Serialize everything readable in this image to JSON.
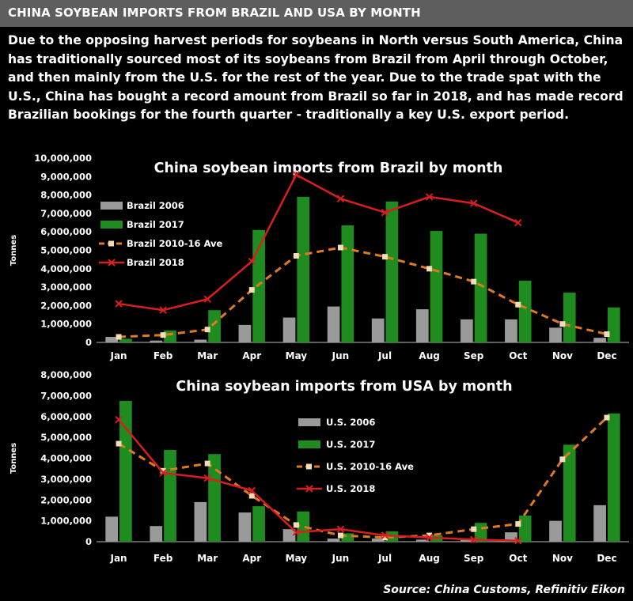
{
  "header": {
    "title": "CHINA SOYBEAN IMPORTS FROM BRAZIL AND USA BY MONTH"
  },
  "description": "Due to the opposing harvest periods for soybeans in North versus South America,  China has traditionally sourced most of its soybeans from Brazil from April through October, and then mainly from the U.S. for the rest of the year. Due to the trade spat with the U.S.,  China has bought a record amount from Brazil so far in 2018, and has made record Brazilian bookings for the fourth quarter - traditionally a key U.S. export period.",
  "source": "Source: China Customs, Refinitiv Eikon",
  "colors": {
    "bar_2006": "#9a9a9a",
    "bar_2017": "#1e8c1e",
    "ave_line": "#e07a22",
    "line_2018": "#d81e1e"
  },
  "chart_data": [
    {
      "type": "bar",
      "title": "China soybean imports from Brazil by month",
      "ylabel": "Tonnes",
      "ylim": [
        0,
        10000000
      ],
      "yticks": [
        "0",
        "1,000,000",
        "2,000,000",
        "3,000,000",
        "4,000,000",
        "5,000,000",
        "6,000,000",
        "7,000,000",
        "8,000,000",
        "9,000,000",
        "10,000,000"
      ],
      "categories": [
        "Jan",
        "Feb",
        "Mar",
        "Apr",
        "May",
        "Jun",
        "Jul",
        "Aug",
        "Sep",
        "Oct",
        "Nov",
        "Dec"
      ],
      "legend_position": "left",
      "series": [
        {
          "name": "Brazil 2006",
          "kind": "bar",
          "values": [
            300000,
            100000,
            150000,
            950000,
            1350000,
            1950000,
            1300000,
            1800000,
            1250000,
            1250000,
            800000,
            250000
          ]
        },
        {
          "name": "Brazil 2017",
          "kind": "bar",
          "values": [
            200000,
            650000,
            1750000,
            6100000,
            7900000,
            6350000,
            7650000,
            6050000,
            5900000,
            3350000,
            2700000,
            1900000
          ]
        },
        {
          "name": "Brazil 2010-16 Ave",
          "kind": "dashed-line",
          "values": [
            300000,
            400000,
            700000,
            2850000,
            4700000,
            5150000,
            4650000,
            4000000,
            3300000,
            2050000,
            1000000,
            450000
          ]
        },
        {
          "name": "Brazil 2018",
          "kind": "line",
          "values": [
            2100000,
            1750000,
            2350000,
            4400000,
            9100000,
            7800000,
            7050000,
            7900000,
            7550000,
            6500000,
            null,
            null
          ]
        }
      ]
    },
    {
      "type": "bar",
      "title": "China soybean imports from USA by month",
      "ylabel": "Tonnes",
      "ylim": [
        0,
        8000000
      ],
      "yticks": [
        "0",
        "1,000,000",
        "2,000,000",
        "3,000,000",
        "4,000,000",
        "5,000,000",
        "6,000,000",
        "7,000,000",
        "8,000,000"
      ],
      "categories": [
        "Jan",
        "Feb",
        "Mar",
        "Apr",
        "May",
        "Jun",
        "Jul",
        "Aug",
        "Sep",
        "Oct",
        "Nov",
        "Dec"
      ],
      "legend_position": "center",
      "series": [
        {
          "name": "U.S. 2006",
          "kind": "bar",
          "values": [
            1200000,
            750000,
            1900000,
            1400000,
            600000,
            150000,
            150000,
            100000,
            150000,
            450000,
            1000000,
            1750000
          ]
        },
        {
          "name": "U.S. 2017",
          "kind": "bar",
          "values": [
            6750000,
            4400000,
            4200000,
            1700000,
            1450000,
            400000,
            500000,
            300000,
            900000,
            1250000,
            4650000,
            6150000
          ]
        },
        {
          "name": "U.S. 2010-16 Ave",
          "kind": "dashed-line",
          "values": [
            4700000,
            3400000,
            3750000,
            2200000,
            800000,
            300000,
            200000,
            300000,
            600000,
            850000,
            3950000,
            5950000
          ]
        },
        {
          "name": "U.S. 2018",
          "kind": "line",
          "values": [
            5850000,
            3300000,
            3050000,
            2450000,
            450000,
            600000,
            300000,
            200000,
            100000,
            50000,
            null,
            null
          ]
        }
      ]
    }
  ]
}
